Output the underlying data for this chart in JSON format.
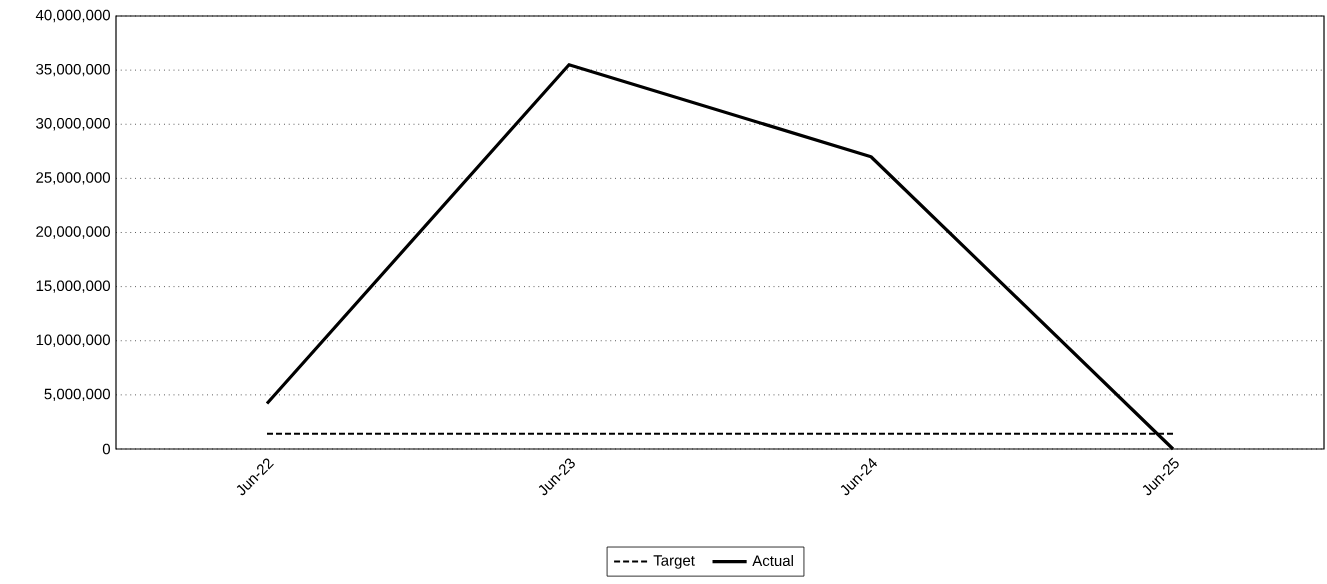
{
  "chart_data": {
    "type": "line",
    "categories": [
      "Jun-22",
      "Jun-23",
      "Jun-24",
      "Jun-25"
    ],
    "series": [
      {
        "name": "Target",
        "color": "#000000",
        "line_style": "dashed",
        "values": [
          1400000,
          1400000,
          1400000,
          1400000
        ]
      },
      {
        "name": "Actual",
        "color": "#000000",
        "line_style": "solid",
        "values": [
          4200000,
          35500000,
          27000000,
          0
        ]
      }
    ],
    "ylim": [
      0,
      40000000
    ],
    "yticks": [
      {
        "value": 0,
        "label": "0"
      },
      {
        "value": 5000000,
        "label": "5,000,000"
      },
      {
        "value": 10000000,
        "label": "10,000,000"
      },
      {
        "value": 15000000,
        "label": "15,000,000"
      },
      {
        "value": 20000000,
        "label": "20,000,000"
      },
      {
        "value": 25000000,
        "label": "25,000,000"
      },
      {
        "value": 30000000,
        "label": "30,000,000"
      },
      {
        "value": 35000000,
        "label": "35,000,000"
      },
      {
        "value": 40000000,
        "label": "40,000,000"
      }
    ],
    "grid": "y",
    "legend": "bottom",
    "marker": "none"
  }
}
